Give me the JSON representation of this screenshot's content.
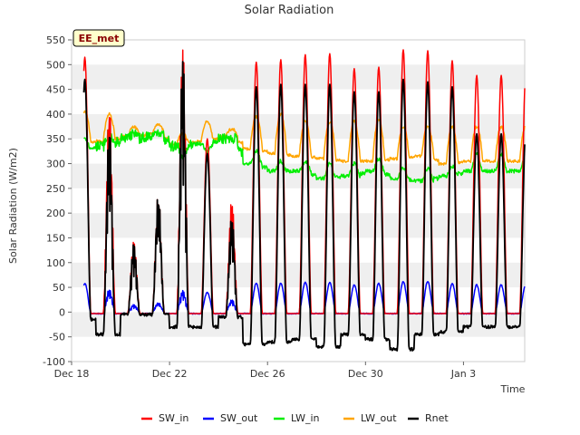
{
  "chart_data": {
    "type": "line",
    "title": "Solar Radiation",
    "xlabel": "Time",
    "ylabel": "Solar Radiation (W/m2)",
    "badge": "EE_met",
    "x_unit": "days since Dec 18",
    "xlim": [
      0,
      18.5
    ],
    "ylim": [
      -100,
      550
    ],
    "y_ticks": [
      -100,
      -50,
      0,
      50,
      100,
      150,
      200,
      250,
      300,
      350,
      400,
      450,
      500,
      550
    ],
    "x_ticks": [
      {
        "value": 0,
        "label": "Dec 18"
      },
      {
        "value": 4,
        "label": "Dec 22"
      },
      {
        "value": 8,
        "label": "Dec 26"
      },
      {
        "value": 12,
        "label": "Dec 30"
      },
      {
        "value": 16,
        "label": "Jan 3"
      }
    ],
    "legend": {
      "position": "bottom-center"
    },
    "days": [
      {
        "sw_peak": 515,
        "sw_out_peak": 58,
        "lw_in_night": 330,
        "lw_in_day": 350,
        "lw_out_night": 340,
        "lw_out_peak": 405,
        "rnet_peak": 470,
        "rnet_night": -15
      },
      {
        "sw_peak": 420,
        "sw_out_peak": 47,
        "lw_in_night": 335,
        "lw_in_day": 360,
        "lw_out_night": 345,
        "lw_out_peak": 400,
        "rnet_peak": 380,
        "rnet_night": -45
      },
      {
        "sw_peak": 145,
        "sw_out_peak": 15,
        "lw_in_night": 350,
        "lw_in_day": 360,
        "lw_out_night": 355,
        "lw_out_peak": 375,
        "rnet_peak": 140,
        "rnet_night": -5
      },
      {
        "sw_peak": 240,
        "sw_out_peak": 20,
        "lw_in_night": 355,
        "lw_in_day": 365,
        "lw_out_night": 360,
        "lw_out_peak": 380,
        "rnet_peak": 240,
        "rnet_night": -5
      },
      {
        "sw_peak": 548,
        "sw_out_peak": 45,
        "lw_in_night": 335,
        "lw_in_day": 320,
        "lw_out_night": 340,
        "lw_out_peak": 360,
        "rnet_peak": 525,
        "rnet_night": -30
      },
      {
        "sw_peak": 350,
        "sw_out_peak": 40,
        "lw_in_night": 340,
        "lw_in_day": 325,
        "lw_out_night": 345,
        "lw_out_peak": 385,
        "rnet_peak": 320,
        "rnet_night": -30
      },
      {
        "sw_peak": 230,
        "sw_out_peak": 25,
        "lw_in_night": 350,
        "lw_in_day": 350,
        "lw_out_night": 355,
        "lw_out_peak": 370,
        "rnet_peak": 195,
        "rnet_night": -10
      },
      {
        "sw_peak": 505,
        "sw_out_peak": 58,
        "lw_in_night": 300,
        "lw_in_day": 325,
        "lw_out_night": 330,
        "lw_out_peak": 395,
        "rnet_peak": 455,
        "rnet_night": -65
      },
      {
        "sw_peak": 510,
        "sw_out_peak": 58,
        "lw_in_night": 285,
        "lw_in_day": 305,
        "lw_out_night": 320,
        "lw_out_peak": 400,
        "rnet_peak": 460,
        "rnet_night": -60
      },
      {
        "sw_peak": 520,
        "sw_out_peak": 60,
        "lw_in_night": 285,
        "lw_in_day": 305,
        "lw_out_night": 315,
        "lw_out_peak": 385,
        "rnet_peak": 460,
        "rnet_night": -55
      },
      {
        "sw_peak": 522,
        "sw_out_peak": 60,
        "lw_in_night": 270,
        "lw_in_day": 300,
        "lw_out_night": 310,
        "lw_out_peak": 385,
        "rnet_peak": 460,
        "rnet_night": -70
      },
      {
        "sw_peak": 492,
        "sw_out_peak": 55,
        "lw_in_night": 275,
        "lw_in_day": 300,
        "lw_out_night": 305,
        "lw_out_peak": 385,
        "rnet_peak": 445,
        "rnet_night": -45
      },
      {
        "sw_peak": 495,
        "sw_out_peak": 58,
        "lw_in_night": 285,
        "lw_in_day": 310,
        "lw_out_night": 305,
        "lw_out_peak": 390,
        "rnet_peak": 445,
        "rnet_night": -55
      },
      {
        "sw_peak": 530,
        "sw_out_peak": 62,
        "lw_in_night": 270,
        "lw_in_day": 290,
        "lw_out_night": 310,
        "lw_out_peak": 375,
        "rnet_peak": 470,
        "rnet_night": -75
      },
      {
        "sw_peak": 528,
        "sw_out_peak": 62,
        "lw_in_night": 265,
        "lw_in_day": 290,
        "lw_out_night": 315,
        "lw_out_peak": 375,
        "rnet_peak": 465,
        "rnet_night": -45
      },
      {
        "sw_peak": 508,
        "sw_out_peak": 58,
        "lw_in_night": 275,
        "lw_in_day": 295,
        "lw_out_night": 300,
        "lw_out_peak": 375,
        "rnet_peak": 455,
        "rnet_night": -40
      },
      {
        "sw_peak": 478,
        "sw_out_peak": 55,
        "lw_in_night": 285,
        "lw_in_day": 320,
        "lw_out_night": 305,
        "lw_out_peak": 375,
        "rnet_peak": 360,
        "rnet_night": -30
      }
    ],
    "series": [
      {
        "name": "SW_in",
        "color": "#ff0000"
      },
      {
        "name": "SW_out",
        "color": "#0000ff"
      },
      {
        "name": "LW_in",
        "color": "#00ee00"
      },
      {
        "name": "LW_out",
        "color": "#ffa500"
      },
      {
        "name": "Rnet",
        "color": "#000000"
      }
    ]
  }
}
